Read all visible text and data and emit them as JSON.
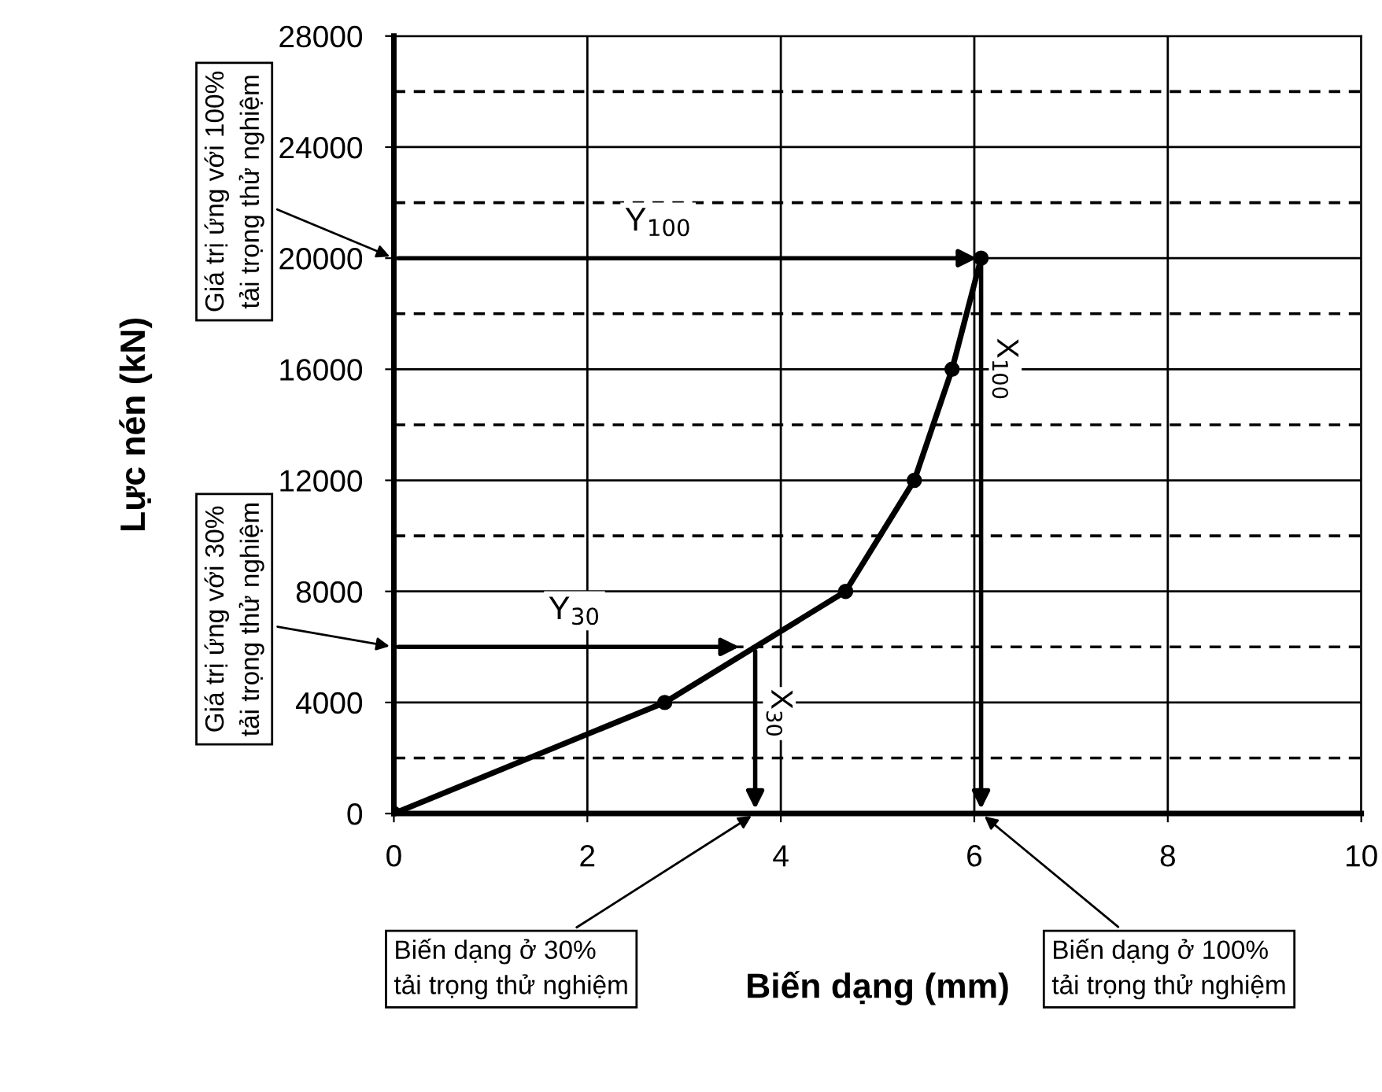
{
  "chart_data": {
    "type": "line",
    "xlabel": "Biến dạng (mm)",
    "ylabel": "Lực nén (kN)",
    "x": [
      0,
      2.8,
      4.67,
      5.38,
      5.77,
      6.07
    ],
    "series": [
      {
        "color": "#000000",
        "values": [
          0,
          4000,
          8000,
          12000,
          16000,
          20000
        ]
      }
    ],
    "marker": "circle",
    "line_style": "solid",
    "xlim": [
      0,
      10
    ],
    "xticks": [
      0,
      2,
      4,
      6,
      8,
      10
    ],
    "ylim": [
      0,
      28000
    ],
    "yticks": [
      0,
      4000,
      8000,
      12000,
      16000,
      20000,
      24000,
      28000
    ],
    "grid": true,
    "ref_lines": [
      {
        "axis": "y",
        "value": 2000,
        "line_style": "dashed",
        "color": "#000000"
      },
      {
        "axis": "y",
        "value": 6000,
        "line_style": "dashed",
        "color": "#000000"
      },
      {
        "axis": "y",
        "value": 10000,
        "line_style": "dashed",
        "color": "#000000"
      },
      {
        "axis": "y",
        "value": 14000,
        "line_style": "dashed",
        "color": "#000000"
      },
      {
        "axis": "y",
        "value": 18000,
        "line_style": "dashed",
        "color": "#000000"
      },
      {
        "axis": "y",
        "value": 22000,
        "line_style": "dashed",
        "color": "#000000"
      },
      {
        "axis": "y",
        "value": 26000,
        "line_style": "dashed",
        "color": "#000000"
      }
    ],
    "annotations": [
      "Y$_{100}$",
      "X$_{100}$",
      "Y$_{30}$",
      "X$_{30}$",
      "Giá trị ứng với 100%\ntải trọng thử nghiệm",
      "Giá trị ứng với 30%\ntải trọng thử nghiệm",
      "Biến dạng ở 30%\ntải trọng thử nghiệm",
      "Biến dạng ở 100%\ntải trọng thử nghiệm"
    ]
  }
}
